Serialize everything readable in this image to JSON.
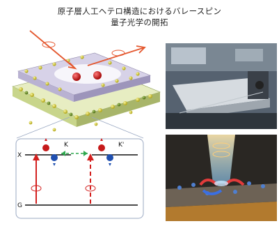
{
  "title": {
    "line1": "原子層人工ヘテロ構造におけるバレースピン",
    "line2": "量子光学の開拓"
  },
  "diagram": {
    "x_label": "X",
    "g_label": "G",
    "k_left": "K",
    "k_right": "K'"
  },
  "photos": {
    "top": "lab-apparatus-photo",
    "bottom": "heterostructure-illustration"
  },
  "colors": {
    "red": "#d3201f",
    "blue": "#1f4fb0",
    "green": "#2fa84f",
    "atom_yellow": "#d4cc3a",
    "atom_green": "#6b8f2a"
  }
}
